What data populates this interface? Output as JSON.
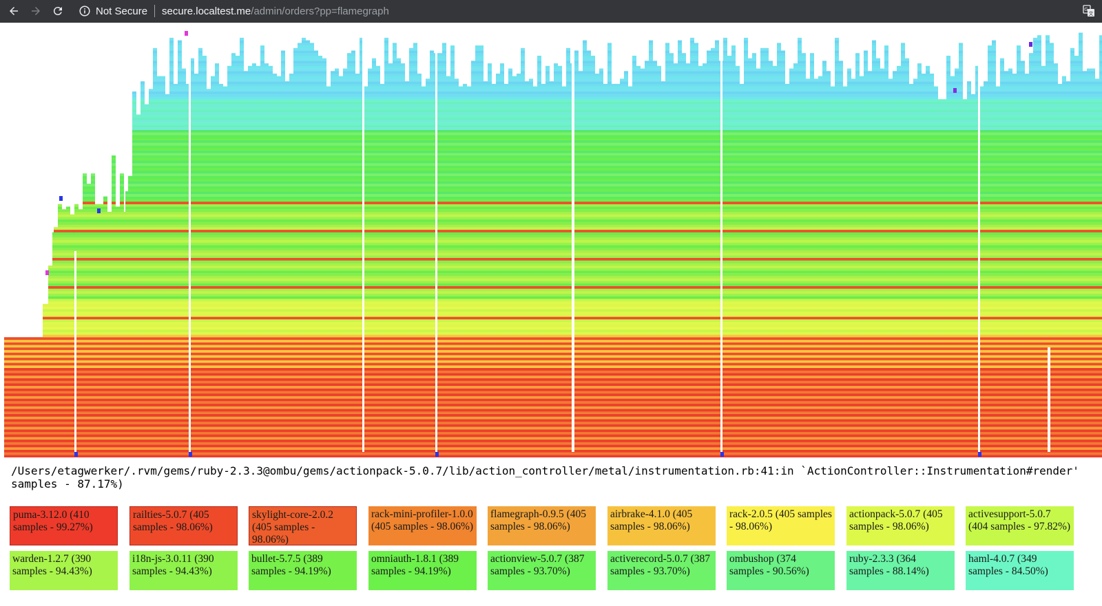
{
  "browser": {
    "security_label": "Not Secure",
    "url_host": "secure.localtest.me",
    "url_path": "/admin/orders?pp=flamegraph"
  },
  "frame_info": {
    "line1": "/Users/etagwerker/.rvm/gems/ruby-2.3.3@ombu/gems/actionpack-5.0.7/lib/action_controller/metal/instrumentation.rb:41:in `ActionController::Instrumentation#render'",
    "line2": "samples - 87.17%)"
  },
  "legend": [
    {
      "text": "puma-3.12.0 (410 samples - 99.27%)",
      "color": "#ee3a2a"
    },
    {
      "text": "railties-5.0.7 (405 samples - 98.06%)",
      "color": "#ee4a2a"
    },
    {
      "text": "skylight-core-2.0.2 (405 samples - 98.06%)",
      "color": "#ee5e2c"
    },
    {
      "text": "rack-mini-profiler-1.0.0 (405 samples - 98.06%)",
      "color": "#f0842f"
    },
    {
      "text": "flamegraph-0.9.5 (405 samples - 98.06%)",
      "color": "#f2a43a"
    },
    {
      "text": "airbrake-4.1.0 (405 samples - 98.06%)",
      "color": "#f6c23e"
    },
    {
      "text": "rack-2.0.5 (405 samples - 98.06%)",
      "color": "#faf04a"
    },
    {
      "text": "actionpack-5.0.7 (405 samples - 98.06%)",
      "color": "#def84a"
    },
    {
      "text": "activesupport-5.0.7 (404 samples - 97.82%)",
      "color": "#c6f84a"
    },
    {
      "text": "warden-1.2.7 (390 samples - 94.43%)",
      "color": "#a8f44a"
    },
    {
      "text": "i18n-js-3.0.11 (390 samples - 94.43%)",
      "color": "#8ef24a"
    },
    {
      "text": "bullet-5.7.5 (389 samples - 94.19%)",
      "color": "#78f04a"
    },
    {
      "text": "omniauth-1.8.1 (389 samples - 94.19%)",
      "color": "#6cf04a"
    },
    {
      "text": "actionview-5.0.7 (387 samples - 93.70%)",
      "color": "#6ef25a"
    },
    {
      "text": "activerecord-5.0.7 (387 samples - 93.70%)",
      "color": "#6ef26a"
    },
    {
      "text": "ombushop (374 samples - 90.56%)",
      "color": "#6af284"
    },
    {
      "text": "ruby-2.3.3 (364 samples - 88.14%)",
      "color": "#6af4a6"
    },
    {
      "text": "haml-4.0.7 (349 samples - 84.50%)",
      "color": "#6cf6c6"
    }
  ]
}
